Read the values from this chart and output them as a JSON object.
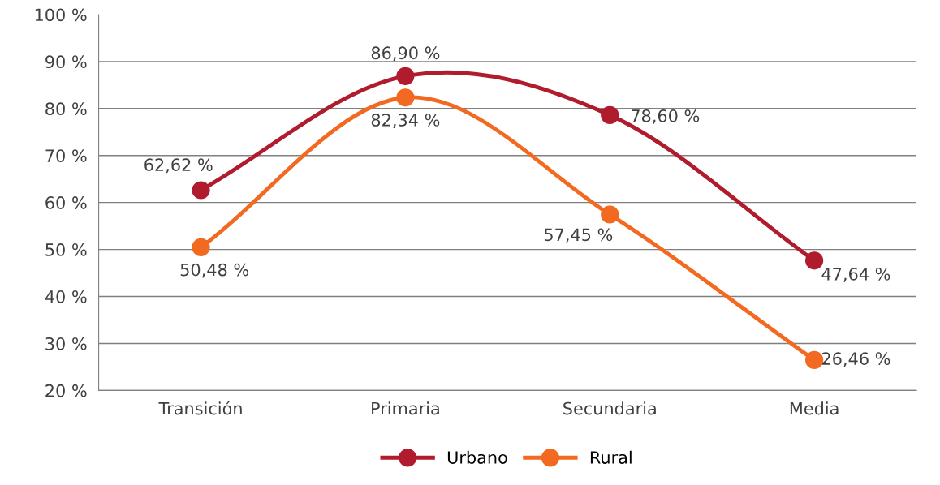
{
  "chart_data": {
    "type": "line",
    "categories": [
      "Transición",
      "Primaria",
      "Secundaria",
      "Media"
    ],
    "series": [
      {
        "name": "Urbano",
        "color": "#b01c2e",
        "values": [
          62.62,
          86.9,
          78.6,
          47.64
        ],
        "value_labels": [
          "62,62 %",
          "86,90 %",
          "78,60 %",
          "47,64 %"
        ]
      },
      {
        "name": "Rural",
        "color": "#f26a21",
        "values": [
          50.48,
          82.34,
          57.45,
          26.46
        ],
        "value_labels": [
          "50,48 %",
          "82,34 %",
          "57,45 %",
          "26,46 %"
        ]
      }
    ],
    "ylim": [
      20,
      100
    ],
    "yticks": [
      {
        "value": 20,
        "label": "20 %"
      },
      {
        "value": 30,
        "label": "30 %"
      },
      {
        "value": 40,
        "label": "40 %"
      },
      {
        "value": 50,
        "label": "50 %"
      },
      {
        "value": 60,
        "label": "60 %"
      },
      {
        "value": 70,
        "label": "70 %"
      },
      {
        "value": 80,
        "label": "80 %"
      },
      {
        "value": 90,
        "label": "90 %"
      },
      {
        "value": 100,
        "label": "100 %"
      }
    ],
    "grid": "y",
    "legend": "bottom",
    "marker": "circle",
    "line_style": "solid"
  }
}
